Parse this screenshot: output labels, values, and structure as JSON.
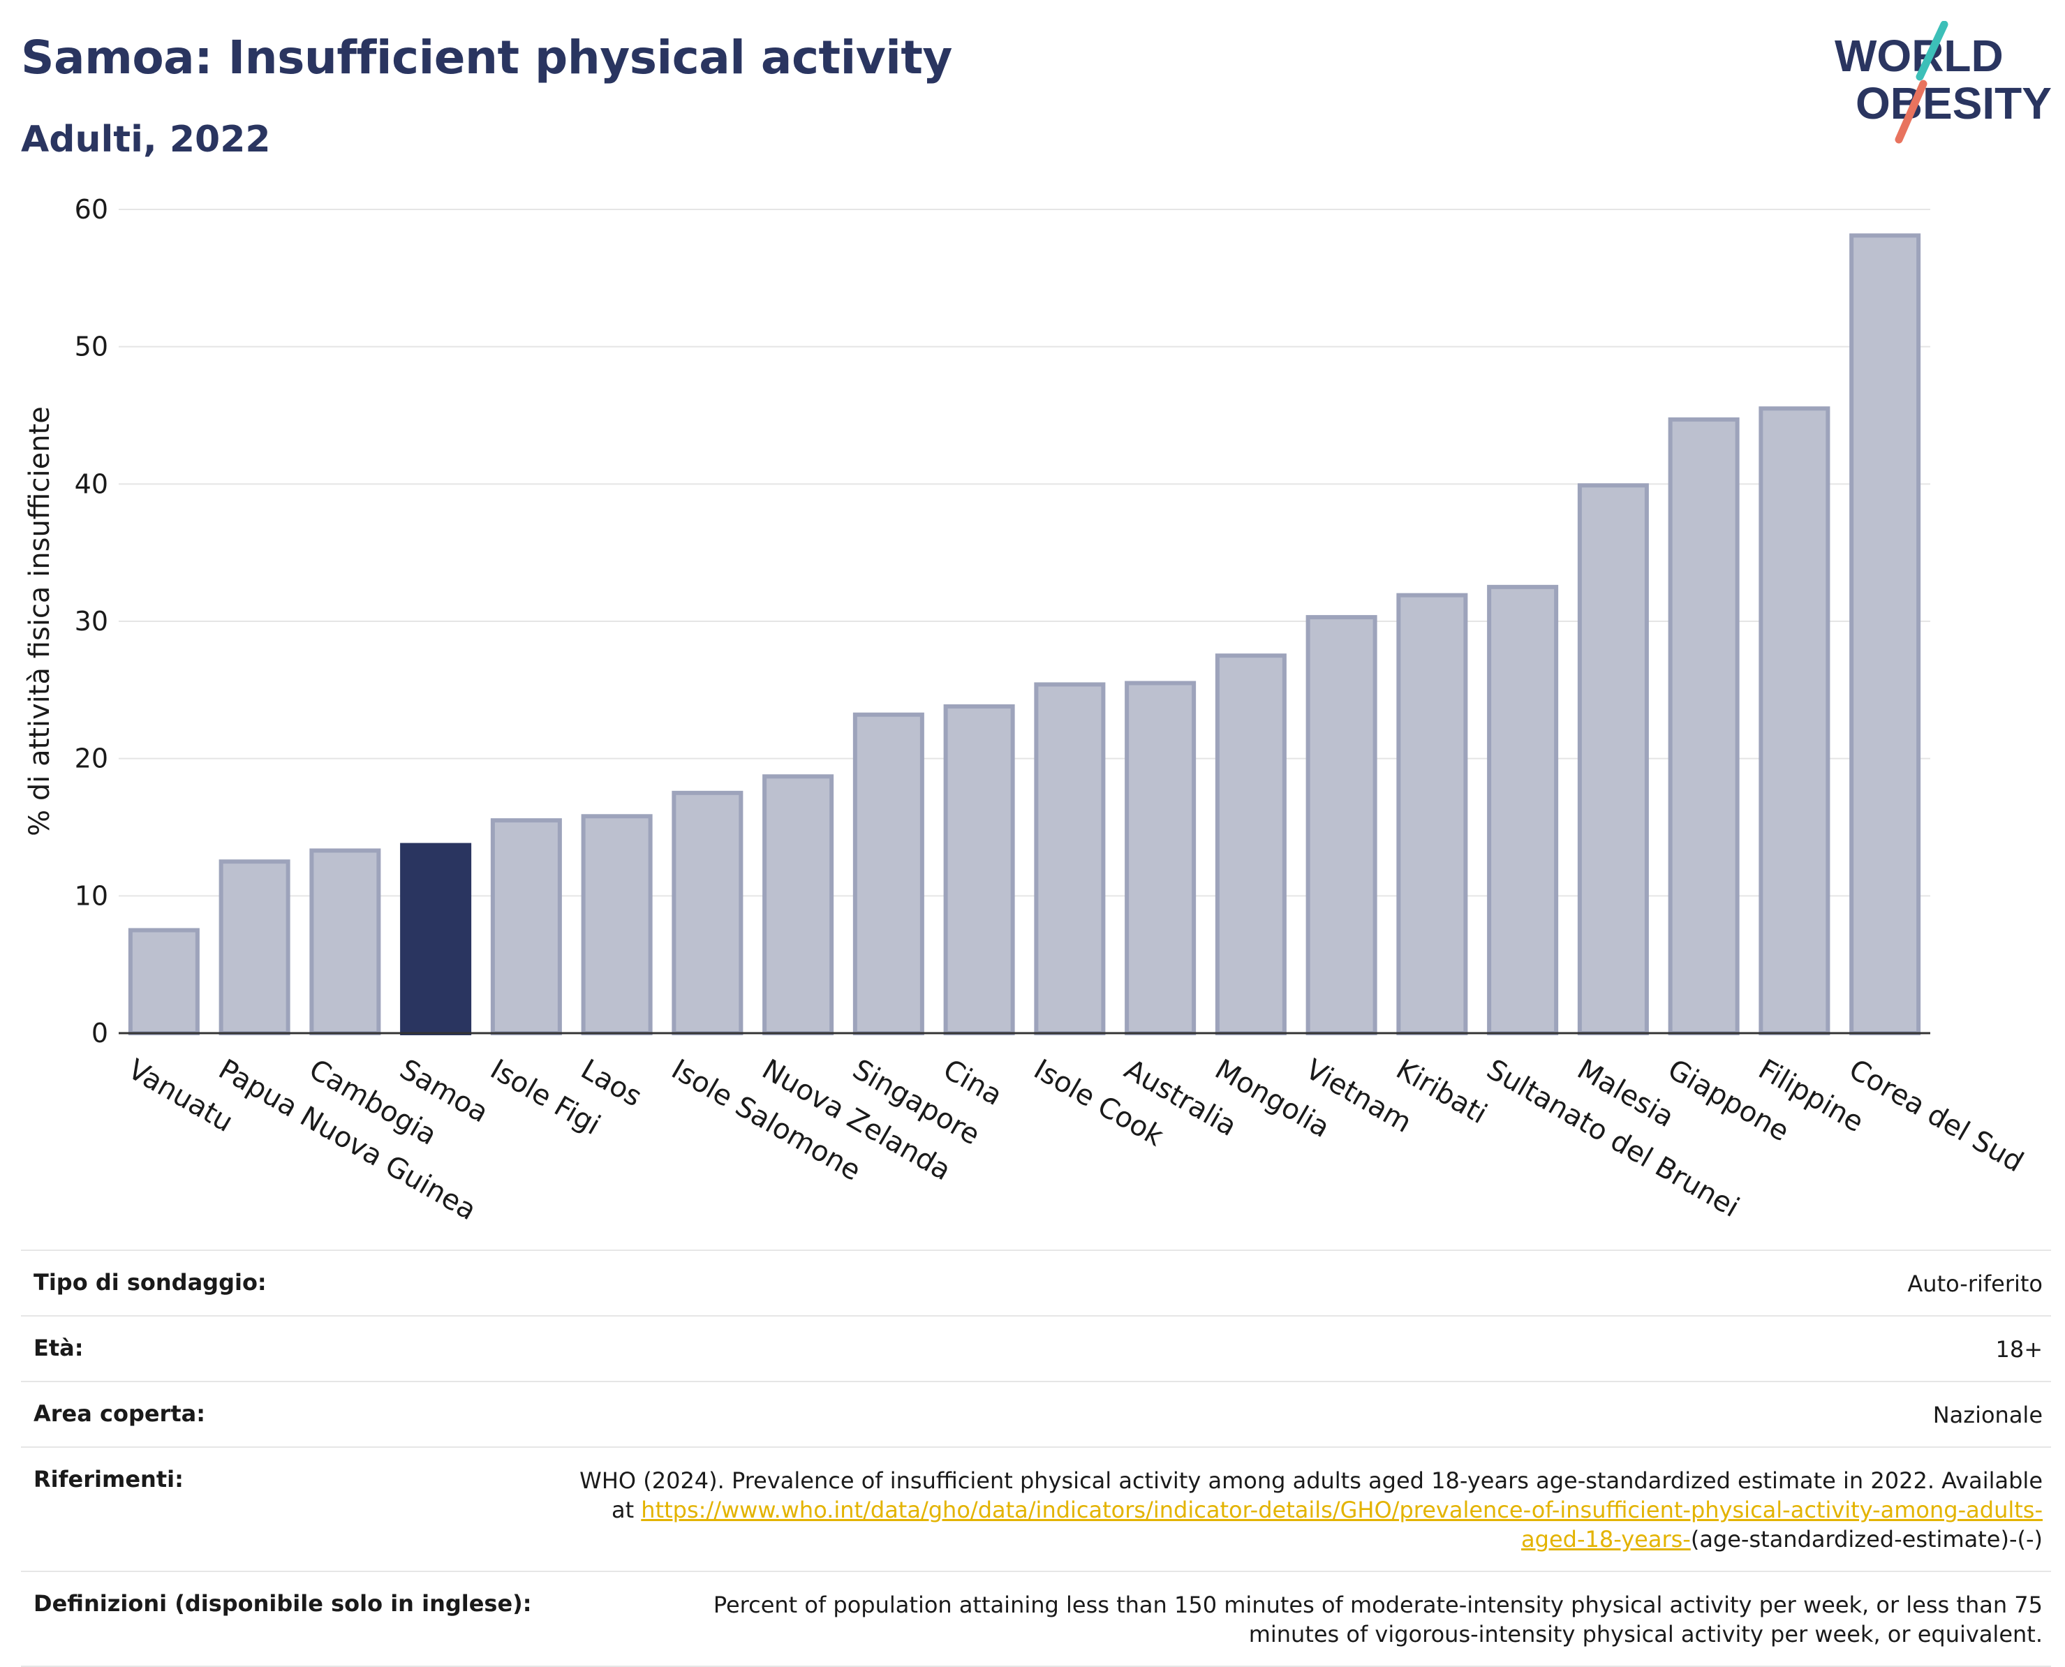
{
  "header": {
    "title": "Samoa: Insufficient physical activity",
    "subtitle": "Adulti, 2022"
  },
  "logo": {
    "line1": "WORLD",
    "line2": "OBESITY",
    "accent_teal": "#3cbfb8",
    "accent_coral": "#e8735e"
  },
  "colors": {
    "highlight": "#2a3560",
    "bar": "#bcc0cf",
    "bar_stroke": "#9da3bb",
    "grid": "#e5e5e5",
    "axis": "#333333",
    "link": "#e3b300"
  },
  "chart_data": {
    "type": "bar",
    "title": "Samoa: Insufficient physical activity",
    "subtitle": "Adulti, 2022",
    "xlabel": "",
    "ylabel": "% di attività fisica insufficiente",
    "ylim": [
      0,
      60
    ],
    "yticks": [
      0,
      10,
      20,
      30,
      40,
      50,
      60
    ],
    "grid": true,
    "highlight": "Samoa",
    "categories": [
      "Vanuatu",
      "Papua Nuova Guinea",
      "Cambogia",
      "Samoa",
      "Isole Figi",
      "Laos",
      "Isole Salomone",
      "Nuova Zelanda",
      "Singapore",
      "Cina",
      "Isole Cook",
      "Australia",
      "Mongolia",
      "Vietnam",
      "Kiribati",
      "Sultanato del Brunei",
      "Malesia",
      "Giappone",
      "Filippine",
      "Corea del Sud"
    ],
    "values": [
      7.5,
      12.5,
      13.3,
      13.7,
      15.5,
      15.8,
      17.5,
      18.7,
      23.2,
      23.8,
      25.4,
      25.5,
      27.5,
      30.3,
      31.9,
      32.5,
      39.9,
      44.7,
      45.5,
      58.1
    ]
  },
  "info_table": {
    "rows": [
      {
        "label": "Tipo di sondaggio:",
        "value": "Auto-riferito"
      },
      {
        "label": "Età:",
        "value": "18+"
      },
      {
        "label": "Area coperta:",
        "value": "Nazionale"
      }
    ],
    "references": {
      "label": "Riferimenti:",
      "text": "WHO (2024). Prevalence of insufficient physical activity among adults aged 18-years age-standardized estimate in 2022. Available at",
      "link": "https://www.who.int/data/gho/data/indicators/indicator-details/GHO/prevalence-of-insufficient-physical-activity-among-adults-aged-18-years-",
      "suffix": "(age-standardized-estimate)-(-)"
    },
    "definitions": {
      "label": "Definizioni (disponibile solo in inglese):",
      "value": "Percent of population attaining less than 150 minutes of moderate-intensity physical activity per week, or less than 75 minutes of vigorous-intensity physical activity per week, or equivalent."
    }
  }
}
